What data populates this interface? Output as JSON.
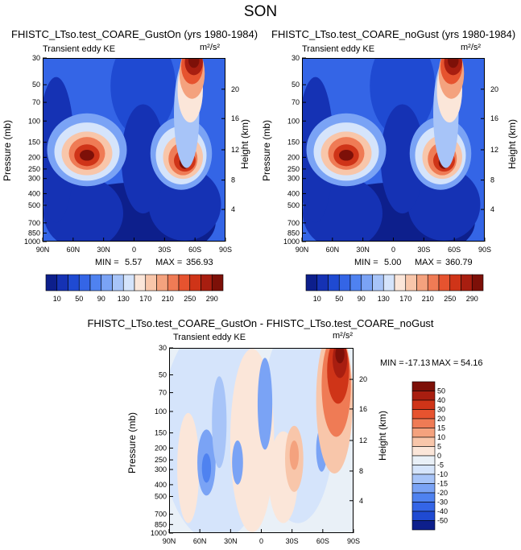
{
  "figure": {
    "title": "SON"
  },
  "chart_data": [
    {
      "type": "heatmap",
      "title": "FHISTC_LTso.test_COARE_GustOn (yrs 1980-1984)",
      "subtitle": "Transient eddy KE",
      "units": "m²/s²",
      "xlabel": "",
      "ylabel": "Pressure (mb)",
      "ylabel_right": "Height (km)",
      "x_ticks": [
        "90N",
        "60N",
        "30N",
        "0",
        "30S",
        "60S",
        "90S"
      ],
      "y_ticks": [
        "30",
        "50",
        "70",
        "100",
        "150",
        "200",
        "250",
        "300",
        "400",
        "500",
        "700",
        "850",
        "1000"
      ],
      "y_ticks_right": [
        "20",
        "16",
        "12",
        "8",
        "4"
      ],
      "y_scale": "log",
      "min": "5.57",
      "max": "356.93",
      "min_label": "MIN =",
      "max_label": "MAX =",
      "colorbar_labels": [
        "10",
        "50",
        "90",
        "130",
        "170",
        "210",
        "250",
        "290"
      ]
    },
    {
      "type": "heatmap",
      "title": "FHISTC_LTso.test_COARE_noGust (yrs 1980-1984)",
      "subtitle": "Transient eddy KE",
      "units": "m²/s²",
      "xlabel": "",
      "ylabel": "Pressure (mb)",
      "ylabel_right": "Height (km)",
      "x_ticks": [
        "90N",
        "60N",
        "30N",
        "0",
        "30S",
        "60S",
        "90S"
      ],
      "y_ticks": [
        "30",
        "50",
        "70",
        "100",
        "150",
        "200",
        "250",
        "300",
        "400",
        "500",
        "700",
        "850",
        "1000"
      ],
      "y_ticks_right": [
        "20",
        "16",
        "12",
        "8",
        "4"
      ],
      "y_scale": "log",
      "min": "5.00",
      "max": "360.79",
      "min_label": "MIN =",
      "max_label": "MAX =",
      "colorbar_labels": [
        "10",
        "50",
        "90",
        "130",
        "170",
        "210",
        "250",
        "290"
      ]
    },
    {
      "type": "heatmap",
      "title": "FHISTC_LTso.test_COARE_GustOn - FHISTC_LTso.test_COARE_noGust",
      "subtitle": "Transient eddy KE",
      "units": "m²/s²",
      "xlabel": "",
      "ylabel": "Pressure (mb)",
      "ylabel_right": "Height (km)",
      "x_ticks": [
        "90N",
        "60N",
        "30N",
        "0",
        "30S",
        "60S",
        "90S"
      ],
      "y_ticks": [
        "30",
        "50",
        "70",
        "100",
        "150",
        "200",
        "250",
        "300",
        "400",
        "500",
        "700",
        "850",
        "1000"
      ],
      "y_ticks_right": [
        "20",
        "16",
        "12",
        "8",
        "4"
      ],
      "y_scale": "log",
      "min": "-17.13",
      "max": "54.16",
      "min_label": "MIN =",
      "max_label": "MAX =",
      "colorbar_labels": [
        "50",
        "40",
        "30",
        "20",
        "15",
        "10",
        "5",
        "0",
        "-5",
        "-10",
        "-15",
        "-20",
        "-30",
        "-40",
        "-50"
      ]
    }
  ],
  "colors": {
    "seq": [
      "#0d1f8c",
      "#1532b4",
      "#1f4ad2",
      "#3465e6",
      "#4f82f0",
      "#7aa3f5",
      "#a7c4f8",
      "#d5e4fb",
      "#fbe6d9",
      "#f8c6aa",
      "#f4a27e",
      "#ef7b55",
      "#e6532f",
      "#cf3418",
      "#a81e10",
      "#7d1008"
    ],
    "div": [
      "#7d1008",
      "#a81e10",
      "#cf3418",
      "#e6532f",
      "#ef7b55",
      "#f4a27e",
      "#f8c6aa",
      "#fbe6d9",
      "#e9f0f7",
      "#d5e4fb",
      "#a7c4f8",
      "#7aa3f5",
      "#4f82f0",
      "#3465e6",
      "#1f4ad2",
      "#0d1f8c"
    ]
  }
}
